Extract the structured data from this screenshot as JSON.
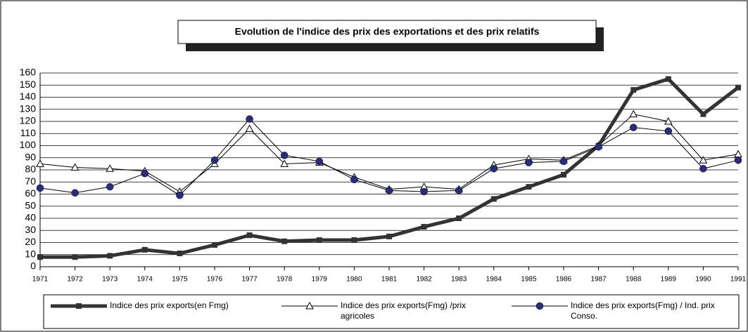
{
  "chart_data": {
    "type": "line",
    "title": "Evolution de l'indice des prix des exportations et des prix relatifs",
    "categories": [
      "1971",
      "1972",
      "1973",
      "1974",
      "1975",
      "1976",
      "1977",
      "1978",
      "1979",
      "1980",
      "1981",
      "1982",
      "1983",
      "1984",
      "1985",
      "1986",
      "1987",
      "1988",
      "1989",
      "1990",
      "1991"
    ],
    "series": [
      {
        "name": "Indice des prix exports(en Fmg)",
        "color": "#333333",
        "marker": "square",
        "values": [
          8,
          8,
          9,
          14,
          11,
          18,
          26,
          21,
          22,
          22,
          25,
          33,
          40,
          56,
          66,
          76,
          100,
          146,
          155,
          126,
          148
        ]
      },
      {
        "name": "Indice des prix exports(Fmg) /prix agricoles",
        "color": "#000000",
        "marker": "triangle",
        "values": [
          85,
          82,
          81,
          79,
          62,
          85,
          114,
          85,
          86,
          74,
          64,
          66,
          64,
          84,
          89,
          88,
          100,
          126,
          120,
          88,
          93
        ]
      },
      {
        "name": "Indice des prix exports(Fmg) / Ind. prix Conso.",
        "color": "#2b2b80",
        "marker": "circle",
        "values": [
          65,
          61,
          66,
          77,
          59,
          88,
          122,
          92,
          87,
          72,
          63,
          62,
          63,
          81,
          86,
          87,
          99,
          115,
          112,
          81,
          88
        ]
      }
    ],
    "ylim": [
      0,
      160
    ],
    "yticks": [
      0,
      10,
      20,
      30,
      40,
      50,
      60,
      70,
      80,
      90,
      100,
      110,
      120,
      130,
      140,
      150,
      160
    ],
    "grid": true,
    "legend": "bottom"
  }
}
